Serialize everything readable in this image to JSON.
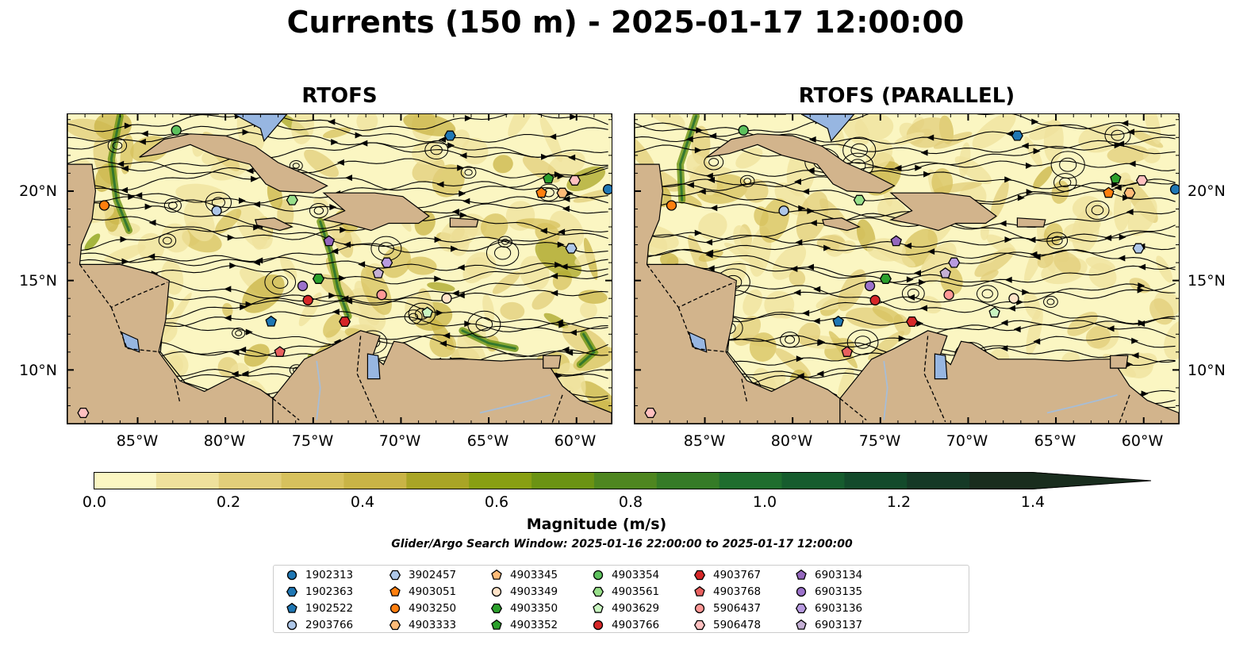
{
  "title": "Currents (150 m) - 2025-01-17 12:00:00",
  "panels": [
    {
      "title": "RTOFS"
    },
    {
      "title": "RTOFS (PARALLEL)"
    }
  ],
  "axes": {
    "lon_ticks": [
      "85°W",
      "80°W",
      "75°W",
      "70°W",
      "65°W",
      "60°W"
    ],
    "lat_ticks": [
      "20°N",
      "15°N",
      "10°N"
    ],
    "lon_range": [
      -89.0,
      -58.0
    ],
    "lat_range": [
      7.0,
      24.3
    ]
  },
  "colorbar": {
    "label": "Magnitude (m/s)",
    "ticks": [
      "0.0",
      "0.2",
      "0.4",
      "0.6",
      "0.8",
      "1.0",
      "1.2",
      "1.4"
    ],
    "min": 0.0,
    "max": 1.5,
    "step": 0.1,
    "extend": "max",
    "colors": [
      "#fbf6c2",
      "#efe19c",
      "#e2ce7a",
      "#d7c15d",
      "#c9b446",
      "#a9a526",
      "#889f12",
      "#6b9313",
      "#4e8620",
      "#357b27",
      "#1f6d2e",
      "#165c2e",
      "#134a2b",
      "#153926",
      "#192d1e"
    ]
  },
  "search_window": "Glider/Argo Search Window: 2025-01-16 22:00:00 to 2025-01-17 12:00:00",
  "legend": [
    {
      "id": "1902313",
      "shape": "circle",
      "color": "#1f77b4"
    },
    {
      "id": "1902363",
      "shape": "hexagon",
      "color": "#1f77b4"
    },
    {
      "id": "1902522",
      "shape": "pentagon",
      "color": "#1f77b4"
    },
    {
      "id": "2903766",
      "shape": "circle",
      "color": "#aec7e8"
    },
    {
      "id": "3902457",
      "shape": "hexagon",
      "color": "#aec7e8"
    },
    {
      "id": "4903051",
      "shape": "pentagon",
      "color": "#ff7f0e"
    },
    {
      "id": "4903250",
      "shape": "circle",
      "color": "#ff7f0e"
    },
    {
      "id": "4903333",
      "shape": "hexagon",
      "color": "#ffbb78"
    },
    {
      "id": "4903345",
      "shape": "pentagon",
      "color": "#ffbb78"
    },
    {
      "id": "4903349",
      "shape": "circle",
      "color": "#ffe3c8"
    },
    {
      "id": "4903350",
      "shape": "hexagon",
      "color": "#2ca02c"
    },
    {
      "id": "4903352",
      "shape": "pentagon",
      "color": "#2ca02c"
    },
    {
      "id": "4903354",
      "shape": "circle",
      "color": "#5dc15d"
    },
    {
      "id": "4903561",
      "shape": "hexagon",
      "color": "#98df8a"
    },
    {
      "id": "4903629",
      "shape": "pentagon",
      "color": "#c9f5c0"
    },
    {
      "id": "4903766",
      "shape": "circle",
      "color": "#d62728"
    },
    {
      "id": "4903767",
      "shape": "hexagon",
      "color": "#d62728"
    },
    {
      "id": "4903768",
      "shape": "pentagon",
      "color": "#e8605f"
    },
    {
      "id": "5906437",
      "shape": "circle",
      "color": "#ff9896"
    },
    {
      "id": "5906478",
      "shape": "hexagon",
      "color": "#ffc0c0"
    },
    {
      "id": "6903134",
      "shape": "pentagon",
      "color": "#9467bd"
    },
    {
      "id": "6903135",
      "shape": "circle",
      "color": "#9c72cb"
    },
    {
      "id": "6903136",
      "shape": "hexagon",
      "color": "#b89be0"
    },
    {
      "id": "6903137",
      "shape": "pentagon",
      "color": "#c5b0d5"
    }
  ],
  "floats_rtofs": [
    {
      "id": "4903354",
      "lon": -82.8,
      "lat": 23.4
    },
    {
      "id": "1902363",
      "lon": -67.2,
      "lat": 23.1
    },
    {
      "id": "4903352",
      "lon": -61.6,
      "lat": 20.7
    },
    {
      "id": "5906478",
      "lon": -60.1,
      "lat": 20.6
    },
    {
      "id": "4903051",
      "lon": -62.0,
      "lat": 19.9
    },
    {
      "id": "4903333",
      "lon": -60.8,
      "lat": 19.9
    },
    {
      "id": "1902313",
      "lon": -58.2,
      "lat": 20.1
    },
    {
      "id": "4903250",
      "lon": -86.9,
      "lat": 19.2
    },
    {
      "id": "2903766",
      "lon": -80.5,
      "lat": 18.9
    },
    {
      "id": "4903561",
      "lon": -76.2,
      "lat": 19.5
    },
    {
      "id": "6903134",
      "lon": -74.1,
      "lat": 17.2
    },
    {
      "id": "6903136",
      "lon": -70.8,
      "lat": 16.0
    },
    {
      "id": "3902457",
      "lon": -60.3,
      "lat": 16.8
    },
    {
      "id": "4903350",
      "lon": -74.7,
      "lat": 15.1
    },
    {
      "id": "6903137",
      "lon": -71.3,
      "lat": 15.4
    },
    {
      "id": "6903135",
      "lon": -75.6,
      "lat": 14.7
    },
    {
      "id": "4903766",
      "lon": -75.3,
      "lat": 13.9
    },
    {
      "id": "5906437",
      "lon": -71.1,
      "lat": 14.2
    },
    {
      "id": "4903349",
      "lon": -67.4,
      "lat": 14.0
    },
    {
      "id": "1902522",
      "lon": -77.4,
      "lat": 12.7
    },
    {
      "id": "4903767",
      "lon": -73.2,
      "lat": 12.7
    },
    {
      "id": "4903629",
      "lon": -68.5,
      "lat": 13.2
    },
    {
      "id": "4903768",
      "lon": -76.9,
      "lat": 11.0
    },
    {
      "id": "5906478",
      "lon": -88.1,
      "lat": 7.6
    }
  ],
  "floats_parallel": [
    {
      "id": "4903354",
      "lon": -82.8,
      "lat": 23.4
    },
    {
      "id": "1902363",
      "lon": -67.2,
      "lat": 23.1
    },
    {
      "id": "4903352",
      "lon": -61.6,
      "lat": 20.7
    },
    {
      "id": "5906478",
      "lon": -60.1,
      "lat": 20.6
    },
    {
      "id": "4903051",
      "lon": -62.0,
      "lat": 19.9
    },
    {
      "id": "4903333",
      "lon": -60.8,
      "lat": 19.9
    },
    {
      "id": "1902313",
      "lon": -58.2,
      "lat": 20.1
    },
    {
      "id": "4903250",
      "lon": -86.9,
      "lat": 19.2
    },
    {
      "id": "2903766",
      "lon": -80.5,
      "lat": 18.9
    },
    {
      "id": "4903561",
      "lon": -76.2,
      "lat": 19.5
    },
    {
      "id": "6903134",
      "lon": -74.1,
      "lat": 17.2
    },
    {
      "id": "6903136",
      "lon": -70.8,
      "lat": 16.0
    },
    {
      "id": "3902457",
      "lon": -60.3,
      "lat": 16.8
    },
    {
      "id": "4903350",
      "lon": -74.7,
      "lat": 15.1
    },
    {
      "id": "6903137",
      "lon": -71.3,
      "lat": 15.4
    },
    {
      "id": "6903135",
      "lon": -75.6,
      "lat": 14.7
    },
    {
      "id": "4903766",
      "lon": -75.3,
      "lat": 13.9
    },
    {
      "id": "5906437",
      "lon": -71.1,
      "lat": 14.2
    },
    {
      "id": "4903349",
      "lon": -67.4,
      "lat": 14.0
    },
    {
      "id": "1902522",
      "lon": -77.4,
      "lat": 12.7
    },
    {
      "id": "4903767",
      "lon": -73.2,
      "lat": 12.7
    },
    {
      "id": "4903629",
      "lon": -68.5,
      "lat": 13.2
    },
    {
      "id": "4903768",
      "lon": -76.9,
      "lat": 11.0
    },
    {
      "id": "5906478",
      "lon": -88.1,
      "lat": 7.6
    }
  ],
  "map_colors": {
    "land": "#d2b48c",
    "water_feature": "#97b6e1",
    "river": "#a6bdd7",
    "streamline": "#000000"
  }
}
